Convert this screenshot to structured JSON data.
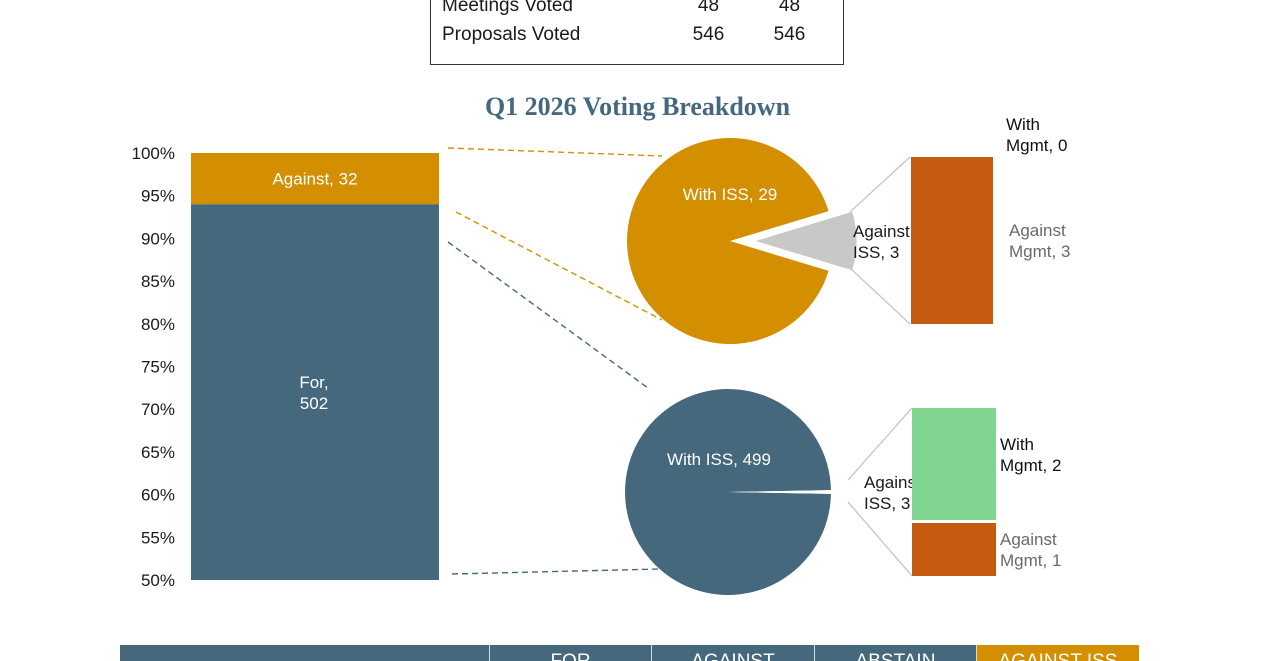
{
  "summary_table": {
    "rows": [
      {
        "label": "Meetings Voted",
        "v1": "48",
        "v2": "48"
      },
      {
        "label": "Proposals Voted",
        "v1": "546",
        "v2": "546"
      }
    ]
  },
  "colors": {
    "for": "#45687d",
    "against": "#d38f00",
    "against_iss": "#c8c8c8",
    "against_mgmt": "#c55a11",
    "with_mgmt": "#7fd590",
    "title": "#44697f"
  },
  "chart_data": {
    "type": "bar",
    "title": "Q1 2026 Voting Breakdown",
    "ylim": [
      50,
      100
    ],
    "yticks": [
      "100%",
      "95%",
      "90%",
      "85%",
      "80%",
      "75%",
      "70%",
      "65%",
      "60%",
      "55%",
      "50%"
    ],
    "stacked_bar": [
      {
        "name": "For",
        "value": 502,
        "label": "For,\n502"
      },
      {
        "name": "Against",
        "value": 32,
        "label": "Against, 32"
      }
    ],
    "pies": [
      {
        "group": "Against",
        "slices": [
          {
            "name": "With ISS",
            "value": 29,
            "label": "With ISS, 29"
          },
          {
            "name": "Against ISS",
            "value": 3,
            "label": "Against\nISS, 3"
          }
        ],
        "breakdown": [
          {
            "name": "With Mgmt",
            "value": 0,
            "label": "With\nMgmt, 0"
          },
          {
            "name": "Against Mgmt",
            "value": 3,
            "label": "Against\nMgmt, 3"
          }
        ]
      },
      {
        "group": "For",
        "slices": [
          {
            "name": "With ISS",
            "value": 499,
            "label": "With ISS, 499"
          },
          {
            "name": "Against ISS",
            "value": 3,
            "label": "Against\nISS, 3"
          }
        ],
        "breakdown": [
          {
            "name": "With Mgmt",
            "value": 2,
            "label": "With\nMgmt, 2"
          },
          {
            "name": "Against Mgmt",
            "value": 1,
            "label": "Against\nMgmt, 1"
          }
        ]
      }
    ]
  },
  "bottom_table": {
    "headers": [
      "",
      "FOR",
      "AGAINST",
      "ABSTAIN",
      "AGAINST ISS"
    ]
  }
}
